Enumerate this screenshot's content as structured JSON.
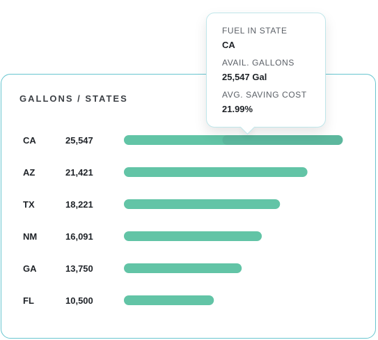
{
  "chart_data": {
    "type": "bar",
    "orientation": "horizontal",
    "title": "GALLONS / STATES",
    "categories": [
      "CA",
      "AZ",
      "TX",
      "NM",
      "GA",
      "FL"
    ],
    "values": [
      25547,
      21421,
      18221,
      16091,
      13750,
      10500
    ],
    "value_labels": [
      "25,547",
      "21,421",
      "18,221",
      "16,091",
      "13,750",
      "10,500"
    ],
    "xlim": [
      0,
      26000
    ],
    "grid": false,
    "highlighted_category": "CA"
  },
  "tooltip": {
    "state_label": "FUEL IN STATE",
    "state_value": "CA",
    "gallons_label": "AVAIL. GALLONS",
    "gallons_value": "25,547 Gal",
    "saving_label": "AVG. SAVING COST",
    "saving_value": "21.99%"
  },
  "colors": {
    "bar": "#62c4a6",
    "bar_highlight": "#57ad96",
    "card_border": "#67c5cf",
    "tooltip_border": "#bfe6ea"
  }
}
